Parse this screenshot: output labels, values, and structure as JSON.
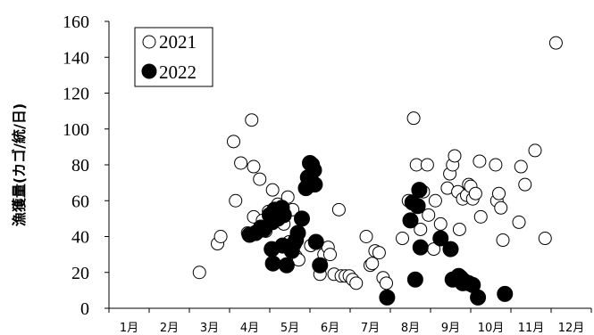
{
  "chart_data": {
    "type": "scatter",
    "xlabel": "",
    "ylabel": "漁獲量(カゴ/統/日)",
    "xlim": [
      0,
      12
    ],
    "ylim": [
      0,
      160
    ],
    "yticks": [
      0,
      20,
      40,
      60,
      80,
      100,
      120,
      140,
      160
    ],
    "categories": [
      "1月",
      "2月",
      "3月",
      "4月",
      "5月",
      "6月",
      "7月",
      "8月",
      "9月",
      "10月",
      "11月",
      "12月"
    ],
    "grid": false,
    "legend_position": "top-left",
    "series": [
      {
        "name": "2021",
        "marker": "open-circle",
        "color": "#000000",
        "points": [
          [
            2.25,
            20
          ],
          [
            2.7,
            36
          ],
          [
            2.78,
            40
          ],
          [
            3.1,
            93
          ],
          [
            3.15,
            60
          ],
          [
            3.28,
            81
          ],
          [
            3.45,
            42
          ],
          [
            3.55,
            105
          ],
          [
            3.6,
            79
          ],
          [
            3.6,
            51
          ],
          [
            3.75,
            72
          ],
          [
            3.82,
            49
          ],
          [
            3.9,
            43
          ],
          [
            3.97,
            54
          ],
          [
            4.07,
            66
          ],
          [
            4.2,
            58
          ],
          [
            4.27,
            49
          ],
          [
            4.35,
            47
          ],
          [
            4.45,
            62
          ],
          [
            4.48,
            37
          ],
          [
            4.57,
            55
          ],
          [
            4.65,
            29
          ],
          [
            4.72,
            27
          ],
          [
            5.02,
            35
          ],
          [
            5.25,
            19
          ],
          [
            5.35,
            30
          ],
          [
            5.45,
            34
          ],
          [
            5.5,
            30
          ],
          [
            5.6,
            19
          ],
          [
            5.72,
            55
          ],
          [
            5.78,
            18
          ],
          [
            5.88,
            18
          ],
          [
            5.98,
            18
          ],
          [
            6.06,
            16
          ],
          [
            6.15,
            14
          ],
          [
            6.4,
            40
          ],
          [
            6.5,
            24
          ],
          [
            6.55,
            25
          ],
          [
            6.62,
            32
          ],
          [
            6.72,
            31
          ],
          [
            6.82,
            17
          ],
          [
            6.9,
            14
          ],
          [
            7.3,
            39
          ],
          [
            7.45,
            60
          ],
          [
            7.58,
            106
          ],
          [
            7.65,
            80
          ],
          [
            7.75,
            44
          ],
          [
            7.82,
            65
          ],
          [
            7.92,
            80
          ],
          [
            7.95,
            52
          ],
          [
            8.08,
            33
          ],
          [
            8.12,
            60
          ],
          [
            8.25,
            47
          ],
          [
            8.42,
            67
          ],
          [
            8.48,
            75
          ],
          [
            8.55,
            80
          ],
          [
            8.6,
            85
          ],
          [
            8.68,
            65
          ],
          [
            8.72,
            44
          ],
          [
            8.8,
            61
          ],
          [
            8.9,
            63
          ],
          [
            8.95,
            69
          ],
          [
            9.0,
            68
          ],
          [
            9.05,
            61
          ],
          [
            9.12,
            64
          ],
          [
            9.22,
            82
          ],
          [
            9.25,
            51
          ],
          [
            9.62,
            80
          ],
          [
            9.65,
            60
          ],
          [
            9.7,
            64
          ],
          [
            9.75,
            56
          ],
          [
            9.8,
            38
          ],
          [
            10.2,
            48
          ],
          [
            10.25,
            79
          ],
          [
            10.35,
            69
          ],
          [
            10.6,
            88
          ],
          [
            10.85,
            39
          ],
          [
            11.12,
            148
          ]
        ]
      },
      {
        "name": "2022",
        "marker": "filled-circle",
        "color": "#000000",
        "points": [
          [
            3.5,
            41
          ],
          [
            3.65,
            42
          ],
          [
            3.78,
            45
          ],
          [
            3.85,
            44
          ],
          [
            4.0,
            52
          ],
          [
            4.06,
            48
          ],
          [
            4.1,
            51
          ],
          [
            4.12,
            55
          ],
          [
            4.15,
            53
          ],
          [
            4.2,
            50
          ],
          [
            4.05,
            33
          ],
          [
            4.08,
            25
          ],
          [
            4.3,
            56
          ],
          [
            4.35,
            52
          ],
          [
            4.32,
            35
          ],
          [
            4.42,
            24
          ],
          [
            4.55,
            32
          ],
          [
            4.6,
            36
          ],
          [
            4.65,
            38
          ],
          [
            4.7,
            42
          ],
          [
            4.8,
            50
          ],
          [
            4.9,
            67
          ],
          [
            4.95,
            73
          ],
          [
            5.0,
            81
          ],
          [
            5.05,
            80
          ],
          [
            5.12,
            69
          ],
          [
            5.1,
            77
          ],
          [
            5.15,
            37
          ],
          [
            5.25,
            24
          ],
          [
            6.92,
            6
          ],
          [
            7.5,
            49
          ],
          [
            7.55,
            59
          ],
          [
            7.62,
            16
          ],
          [
            7.68,
            57
          ],
          [
            7.72,
            66
          ],
          [
            7.75,
            34
          ],
          [
            8.25,
            39
          ],
          [
            8.5,
            33
          ],
          [
            8.55,
            16
          ],
          [
            8.7,
            18
          ],
          [
            8.75,
            17
          ],
          [
            8.8,
            14
          ],
          [
            8.85,
            15
          ],
          [
            8.95,
            14
          ],
          [
            9.05,
            13
          ],
          [
            9.18,
            6
          ],
          [
            9.85,
            8
          ]
        ]
      }
    ]
  }
}
